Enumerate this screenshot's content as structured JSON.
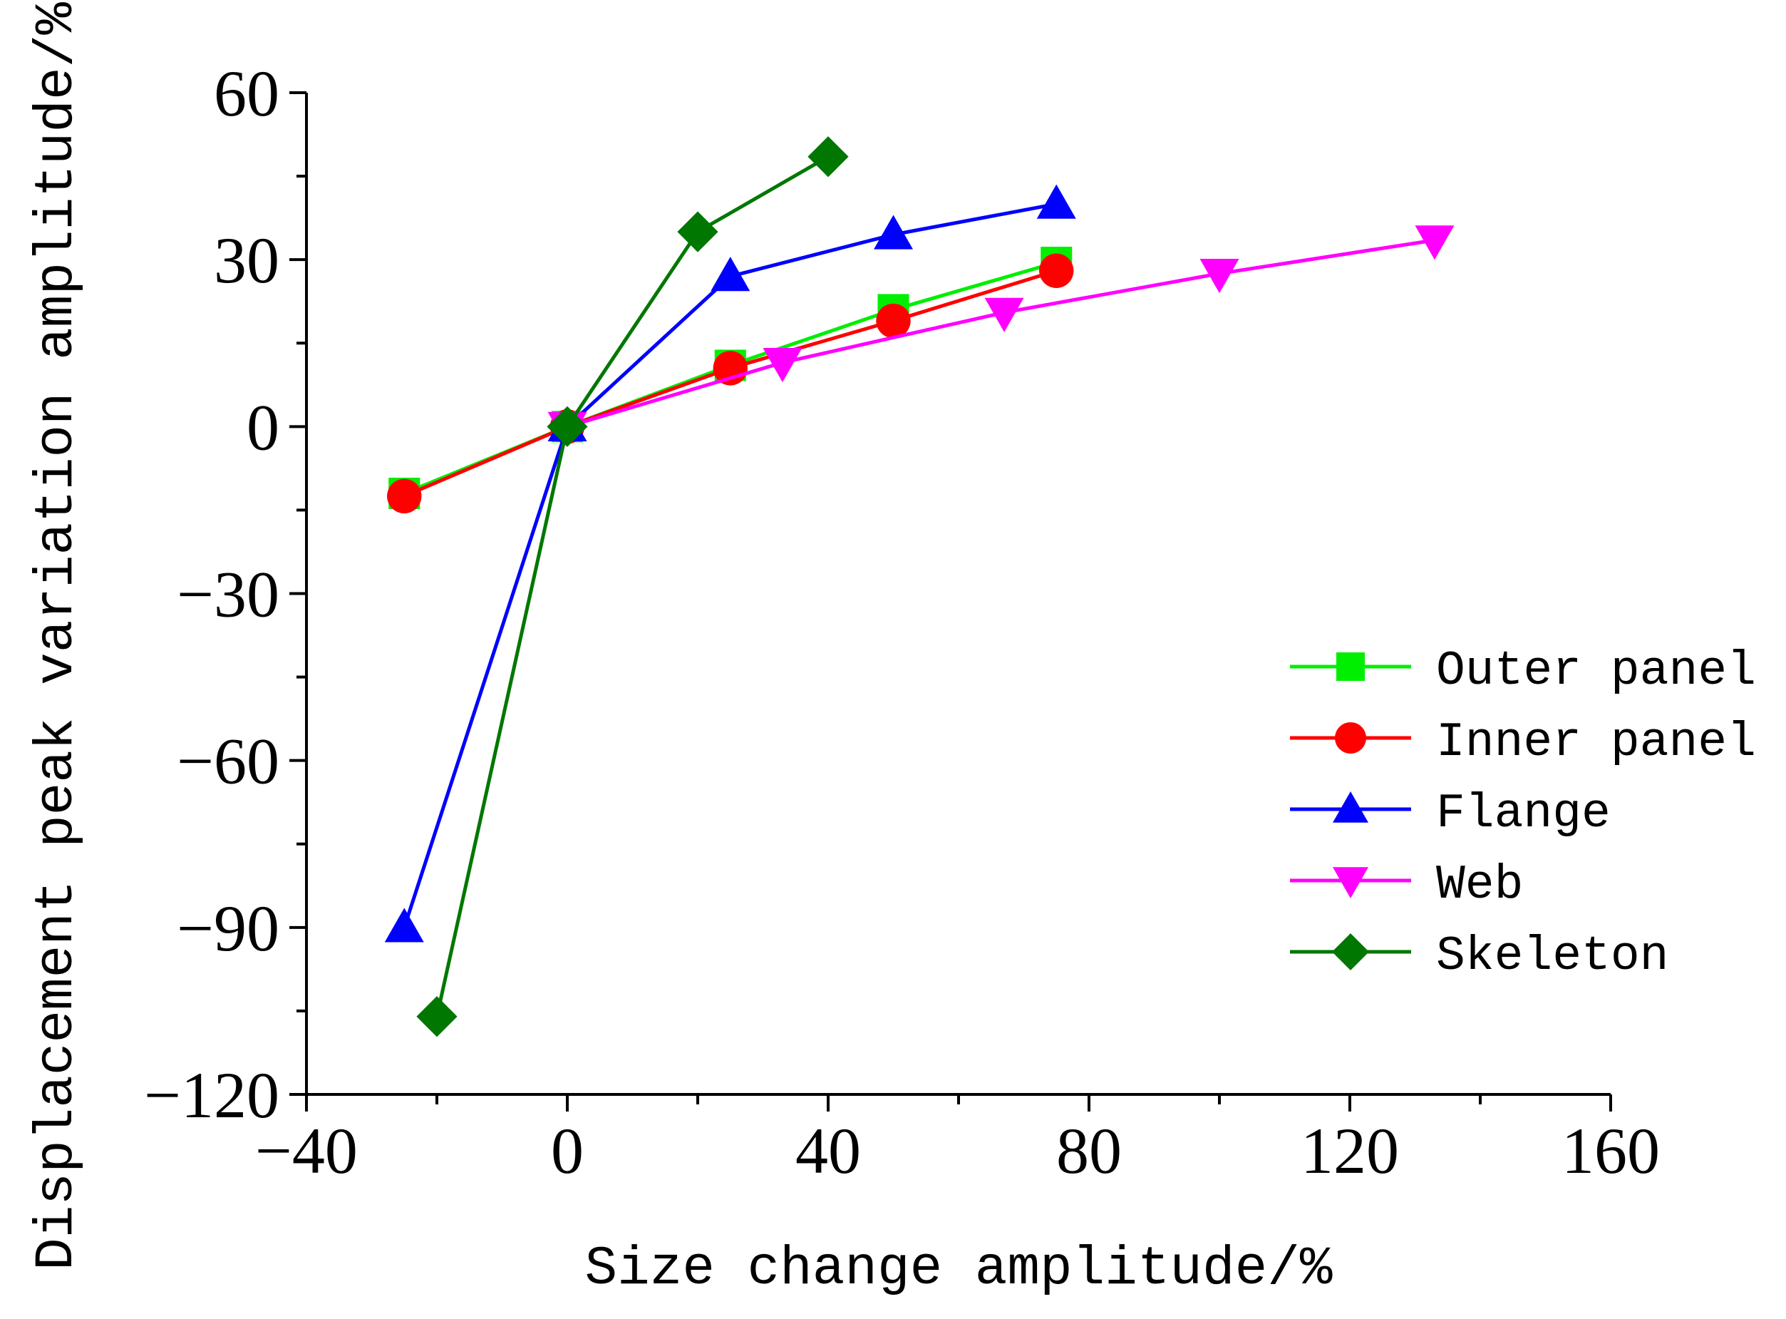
{
  "chart_data": {
    "type": "line",
    "xlabel": "Size change amplitude/%",
    "ylabel": "Displacement peak variation amplitude/%",
    "xlim": [
      -40,
      160
    ],
    "ylim": [
      -120,
      60
    ],
    "xticks": [
      -40,
      0,
      40,
      80,
      120,
      160
    ],
    "yticks": [
      60,
      30,
      0,
      -30,
      -60,
      -90,
      -120
    ],
    "xtick_labels": [
      "−40",
      "0",
      "40",
      "80",
      "120",
      "160"
    ],
    "ytick_labels": [
      "60",
      "30",
      "0",
      "−30",
      "−60",
      "−90",
      "−120"
    ],
    "legend_position": "right",
    "series": [
      {
        "name": "Outer panel",
        "color": "#00ee00",
        "marker": "square",
        "x": [
          -25,
          0,
          25,
          50,
          75
        ],
        "y": [
          -12,
          0,
          11,
          21,
          29.5
        ]
      },
      {
        "name": "Inner panel",
        "color": "#ff0000",
        "marker": "circle",
        "x": [
          -25,
          0,
          25,
          50,
          75
        ],
        "y": [
          -12.5,
          0,
          10.5,
          19,
          28
        ]
      },
      {
        "name": "Flange",
        "color": "#0000ff",
        "marker": "triangle-up",
        "x": [
          -25,
          0,
          25,
          50,
          75
        ],
        "y": [
          -90,
          0,
          27,
          34.5,
          40
        ]
      },
      {
        "name": "Web",
        "color": "#ff00ff",
        "marker": "triangle-down",
        "x": [
          0,
          33,
          67,
          100,
          133
        ],
        "y": [
          0,
          11.5,
          20.5,
          27.5,
          33.5
        ]
      },
      {
        "name": "Skeleton",
        "color": "#007700",
        "marker": "diamond",
        "x": [
          -20,
          0,
          20,
          40
        ],
        "y": [
          -106,
          0,
          35,
          48.5
        ]
      }
    ]
  }
}
